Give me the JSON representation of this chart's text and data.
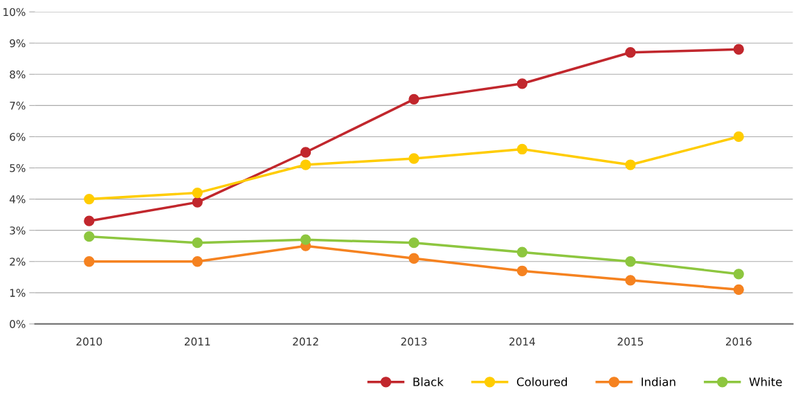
{
  "chart_data": {
    "type": "line",
    "categories": [
      "2010",
      "2011",
      "2012",
      "2013",
      "2014",
      "2015",
      "2016"
    ],
    "series": [
      {
        "name": "Black",
        "color": "#c1272d",
        "values": [
          3.3,
          3.9,
          5.5,
          7.2,
          7.7,
          8.7,
          8.8
        ]
      },
      {
        "name": "Coloured",
        "color": "#ffcc00",
        "values": [
          4.0,
          4.2,
          5.1,
          5.3,
          5.6,
          5.1,
          6.0
        ]
      },
      {
        "name": "Indian",
        "color": "#f58220",
        "values": [
          2.0,
          2.0,
          2.5,
          2.1,
          1.7,
          1.4,
          1.1
        ]
      },
      {
        "name": "White",
        "color": "#8dc63f",
        "values": [
          2.8,
          2.6,
          2.7,
          2.6,
          2.3,
          2.0,
          1.6
        ]
      }
    ],
    "ylim": [
      0,
      10
    ],
    "yticks": [
      {
        "value": 0,
        "label": "0%"
      },
      {
        "value": 1,
        "label": "1%"
      },
      {
        "value": 2,
        "label": "2%"
      },
      {
        "value": 3,
        "label": "3%"
      },
      {
        "value": 4,
        "label": "4%"
      },
      {
        "value": 5,
        "label": "5%"
      },
      {
        "value": 6,
        "label": "6%"
      },
      {
        "value": 7,
        "label": "7%"
      },
      {
        "value": 8,
        "label": "8%"
      },
      {
        "value": 9,
        "label": "9%"
      },
      {
        "value": 10,
        "label": "10%"
      }
    ],
    "grid": "y",
    "legend": "bottom right",
    "marker": "circle",
    "line_style": "solid"
  }
}
